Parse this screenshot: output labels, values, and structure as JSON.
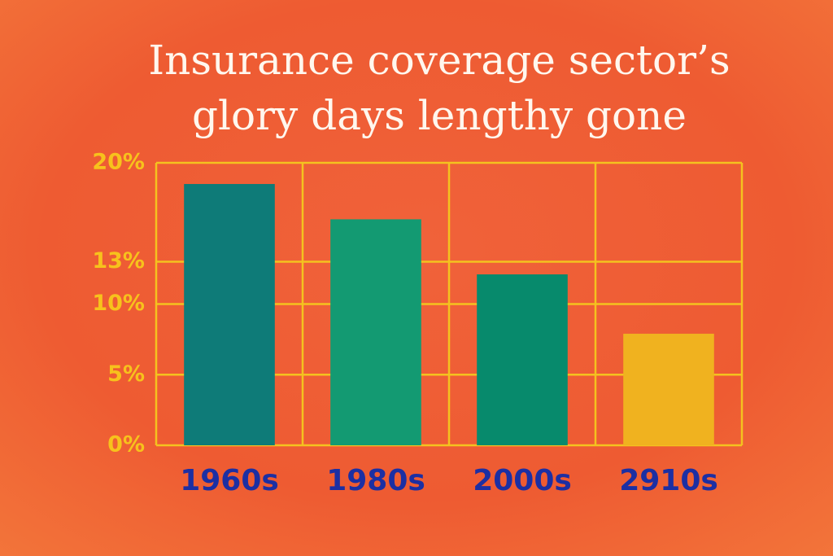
{
  "chart_data": {
    "type": "bar",
    "title": [
      "Insurance coverage sector’s",
      "glory days lengthy gone"
    ],
    "categories": [
      "1960s",
      "1980s",
      "2000s",
      "2910s"
    ],
    "values": [
      18.5,
      16,
      12.1,
      7.9
    ],
    "colors": [
      "#0e7b78",
      "#139a72",
      "#078a6c",
      "#f0b21f"
    ],
    "ylim": [
      0,
      20
    ],
    "yticks": [
      {
        "value": 0,
        "label": "0%"
      },
      {
        "value": 5,
        "label": "5%"
      },
      {
        "value": 10,
        "label": "10%"
      },
      {
        "value": 13,
        "label": "13%"
      },
      {
        "value": 20,
        "label": "20%"
      }
    ],
    "grid": true
  }
}
